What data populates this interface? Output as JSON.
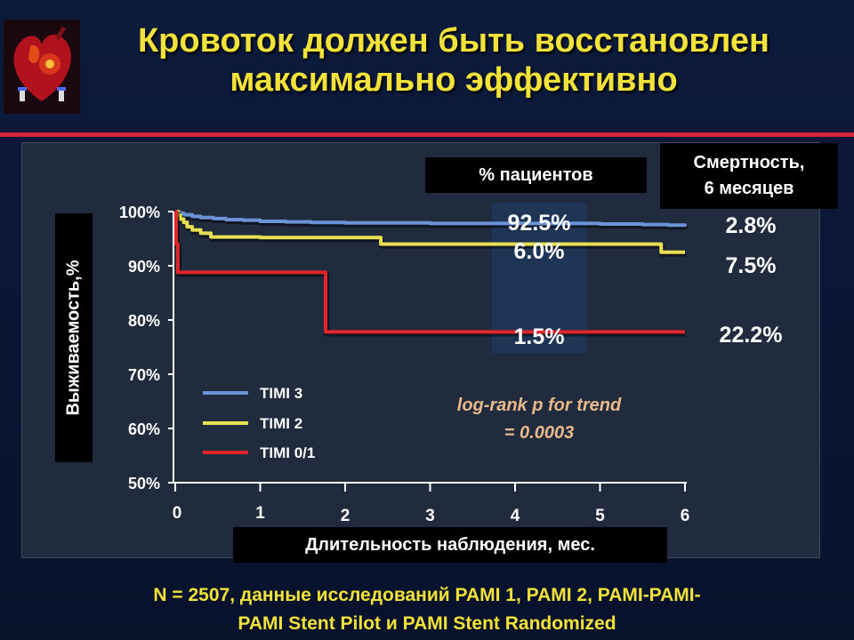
{
  "header": {
    "title_line1": "Кровоток должен быть восстановлен",
    "title_line2": "максимально эффективно"
  },
  "colors": {
    "title": "#f2e23a",
    "rule": "#d3253a",
    "timi3": "#6b93d6",
    "timi2": "#e8e052",
    "timi01": "#e0262a",
    "annotation": "#e8b98a"
  },
  "boxes": {
    "patients_label": "% пациентов",
    "mortality_line1": "Смертность,",
    "mortality_line2": "6 месяцев"
  },
  "chart_data": {
    "type": "line",
    "xlabel": "Длительность наблюдения, мес.",
    "ylabel": "Выживаемость,%",
    "xlim": [
      0,
      6
    ],
    "ylim": [
      50,
      100
    ],
    "x_ticks": [
      "0",
      "1",
      "2",
      "3",
      "4",
      "5",
      "6"
    ],
    "y_ticks": [
      "100%",
      "90%",
      "80%",
      "70%",
      "60%",
      "50%"
    ],
    "legend": [
      "TIMI 3",
      "TIMI 2",
      "TIMI 0/1"
    ],
    "annotation_line1": "log-rank p for trend",
    "annotation_line2": "= 0.0003",
    "patient_percent": [
      "92.5%",
      "6.0%",
      "1.5%"
    ],
    "mortality": [
      "2.8%",
      "7.5%",
      "22.2%"
    ],
    "series": [
      {
        "name": "TIMI 3",
        "x": [
          0,
          0.05,
          0.1,
          0.2,
          0.3,
          0.45,
          0.6,
          0.8,
          1.0,
          1.3,
          1.6,
          2.0,
          2.5,
          3.0,
          3.5,
          4.0,
          4.5,
          5.0,
          5.5,
          5.8,
          6.0
        ],
        "y": [
          100,
          99.7,
          99.4,
          99.1,
          98.9,
          98.7,
          98.5,
          98.4,
          98.2,
          98.1,
          98.0,
          97.9,
          97.9,
          97.8,
          97.8,
          97.8,
          97.8,
          97.7,
          97.6,
          97.5,
          97.2
        ]
      },
      {
        "name": "TIMI 2",
        "x": [
          0,
          0.03,
          0.06,
          0.1,
          0.14,
          0.2,
          0.3,
          0.42,
          1.0,
          2.0,
          2.38,
          2.42,
          3.0,
          4.0,
          5.0,
          5.68,
          5.72,
          6.0
        ],
        "y": [
          100,
          99.3,
          98.6,
          98.0,
          97.2,
          96.6,
          96.0,
          95.3,
          95.2,
          95.2,
          95.2,
          94.0,
          94.0,
          94.0,
          94.0,
          94.0,
          92.5,
          92.5
        ]
      },
      {
        "name": "TIMI 0/1",
        "x": [
          0,
          0.01,
          0.03,
          1.0,
          1.73,
          1.77,
          3.0,
          4.0,
          5.0,
          6.0
        ],
        "y": [
          100,
          94.0,
          88.8,
          88.8,
          88.8,
          77.8,
          77.8,
          77.8,
          77.8,
          77.8
        ]
      }
    ]
  },
  "footer": {
    "line1": "N = 2507, данные исследований PAMI 1, PAMI 2, PAMI-PAMI-",
    "line2": "PAMI Stent Pilot и PAMI Stent Randomized"
  }
}
